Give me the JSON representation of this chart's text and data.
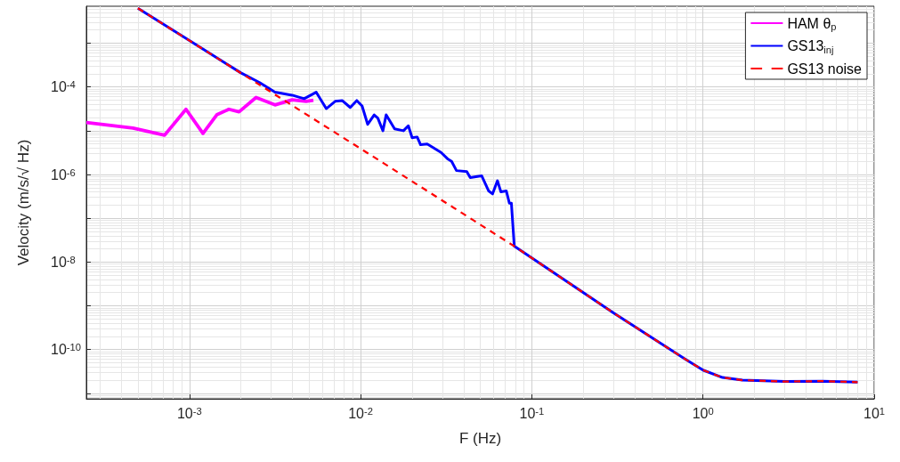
{
  "chart_data": {
    "type": "line",
    "xlabel": "F (Hz)",
    "ylabel": "Velocity (m/s/√ Hz)",
    "log": "xy",
    "grid": true,
    "legend": "top right",
    "xlim": [
      0.00025,
      10
    ],
    "ylim": [
      7.5e-12,
      0.007
    ],
    "xticks": [
      {
        "value": 0.001,
        "label": "10$^{-3}$"
      },
      {
        "value": 0.01,
        "label": "10$^{-2}$"
      },
      {
        "value": 0.1,
        "label": "10$^{-1}$"
      },
      {
        "value": 1,
        "label": "10$^{0}$"
      },
      {
        "value": 10,
        "label": "10$^{1}$"
      }
    ],
    "yticks": [
      {
        "value": 1e-11,
        "label": null
      },
      {
        "value": 1e-10,
        "label": "10$^{-10}$"
      },
      {
        "value": 1e-09,
        "label": null
      },
      {
        "value": 1e-08,
        "label": "10$^{-8}$"
      },
      {
        "value": 1e-07,
        "label": null
      },
      {
        "value": 1e-06,
        "label": "10$^{-6}$"
      },
      {
        "value": 1e-05,
        "label": null
      },
      {
        "value": 0.0001,
        "label": "10$^{-4}$"
      },
      {
        "value": 0.001,
        "label": null
      }
    ],
    "series": [
      {
        "name": "HAM θ$_{p}$",
        "color": "#ff00ff",
        "line_style": "solid",
        "x": [
          0.00025,
          0.000468,
          0.000716,
          0.000955,
          0.0012,
          0.00145,
          0.0017,
          0.00195,
          0.00245,
          0.00316,
          0.00398,
          0.0048,
          0.0053
        ],
        "values": [
          1.55e-05,
          1.15e-05,
          7.9e-06,
          3.1e-05,
          8.7e-06,
          2.34e-05,
          3.1e-05,
          2.7e-05,
          5.75e-05,
          3.9e-05,
          5.1e-05,
          4.7e-05,
          5e-05
        ]
      },
      {
        "name": "GS13$_{inj}$",
        "color": "#0000ff",
        "line_style": "solid",
        "x": [
          0.0005,
          0.001,
          0.002,
          0.00257,
          0.00316,
          0.00398,
          0.00468,
          0.0055,
          0.0063,
          0.0071,
          0.0078,
          0.0087,
          0.0095,
          0.0102,
          0.011,
          0.012,
          0.0126,
          0.0135,
          0.0141,
          0.0158,
          0.0178,
          0.019,
          0.02,
          0.0214,
          0.0224,
          0.0245,
          0.0295,
          0.0324,
          0.034,
          0.0363,
          0.0417,
          0.0437,
          0.051,
          0.056,
          0.059,
          0.063,
          0.066,
          0.071,
          0.074,
          0.076,
          0.079,
          0.3,
          0.8,
          1.0,
          1.3,
          1.7,
          3,
          5,
          8
        ],
        "values": [
          0.0063,
          0.00115,
          0.00021,
          0.000126,
          7.6e-05,
          6.5e-05,
          5.4e-05,
          7.6e-05,
          3.2e-05,
          4.7e-05,
          4.9e-05,
          3.4e-05,
          4.9e-05,
          3.7e-05,
          1.4e-05,
          2.3e-05,
          1.95e-05,
          1e-05,
          2.3e-05,
          1.1e-05,
          1e-05,
          1.3e-05,
          6.9e-06,
          7.2e-06,
          4.8e-06,
          5e-06,
          3.2e-06,
          2.24e-06,
          2e-06,
          1.23e-06,
          1.17e-06,
          8.5e-07,
          9.3e-07,
          4.2e-07,
          3.6e-07,
          7.2e-07,
          4e-07,
          4.2e-07,
          2.2e-07,
          2.2e-07,
          2.3e-08,
          6.9e-10,
          5.8e-11,
          3.4e-11,
          2.3e-11,
          2e-11,
          1.86e-11,
          1.9e-11,
          1.8e-11
        ]
      },
      {
        "name": "GS13 noise",
        "color": "#ff0000",
        "line_style": "dashed",
        "x": [
          0.0005,
          0.001,
          0.01,
          0.079,
          0.3,
          0.8,
          1.0,
          1.3,
          1.7,
          3,
          5,
          8
        ],
        "values": [
          0.0063,
          0.00115,
          3.9e-06,
          2.3e-08,
          6.9e-10,
          5.8e-11,
          3.4e-11,
          2.3e-11,
          2e-11,
          1.86e-11,
          1.9e-11,
          1.8e-11
        ]
      }
    ]
  }
}
